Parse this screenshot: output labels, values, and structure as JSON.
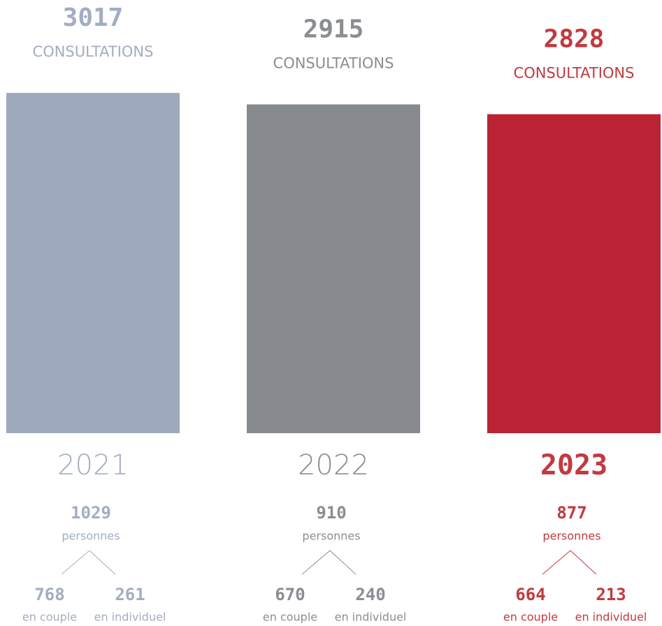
{
  "chart_data": {
    "type": "bar",
    "categories": [
      "2021",
      "2022",
      "2023"
    ],
    "values": [
      3017,
      2915,
      2828
    ],
    "value_unit": "CONSULTATIONS",
    "colors": [
      "#9ea9bd",
      "#878a8f",
      "#bb2233"
    ],
    "text_colors": [
      "#a3adc1",
      "#8a8d92",
      "#c13a40"
    ],
    "emphasis": [
      false,
      false,
      true
    ],
    "ylim": [
      0,
      3500
    ],
    "breakdown": [
      {
        "total": 1029,
        "total_label": "personnes",
        "parts": [
          {
            "value": 768,
            "label": "en couple"
          },
          {
            "value": 261,
            "label": "en individuel"
          }
        ]
      },
      {
        "total": 910,
        "total_label": "personnes",
        "parts": [
          {
            "value": 670,
            "label": "en couple"
          },
          {
            "value": 240,
            "label": "en individuel"
          }
        ]
      },
      {
        "total": 877,
        "total_label": "personnes",
        "parts": [
          {
            "value": 664,
            "label": "en couple"
          },
          {
            "value": 213,
            "label": "en individuel"
          }
        ]
      }
    ]
  }
}
